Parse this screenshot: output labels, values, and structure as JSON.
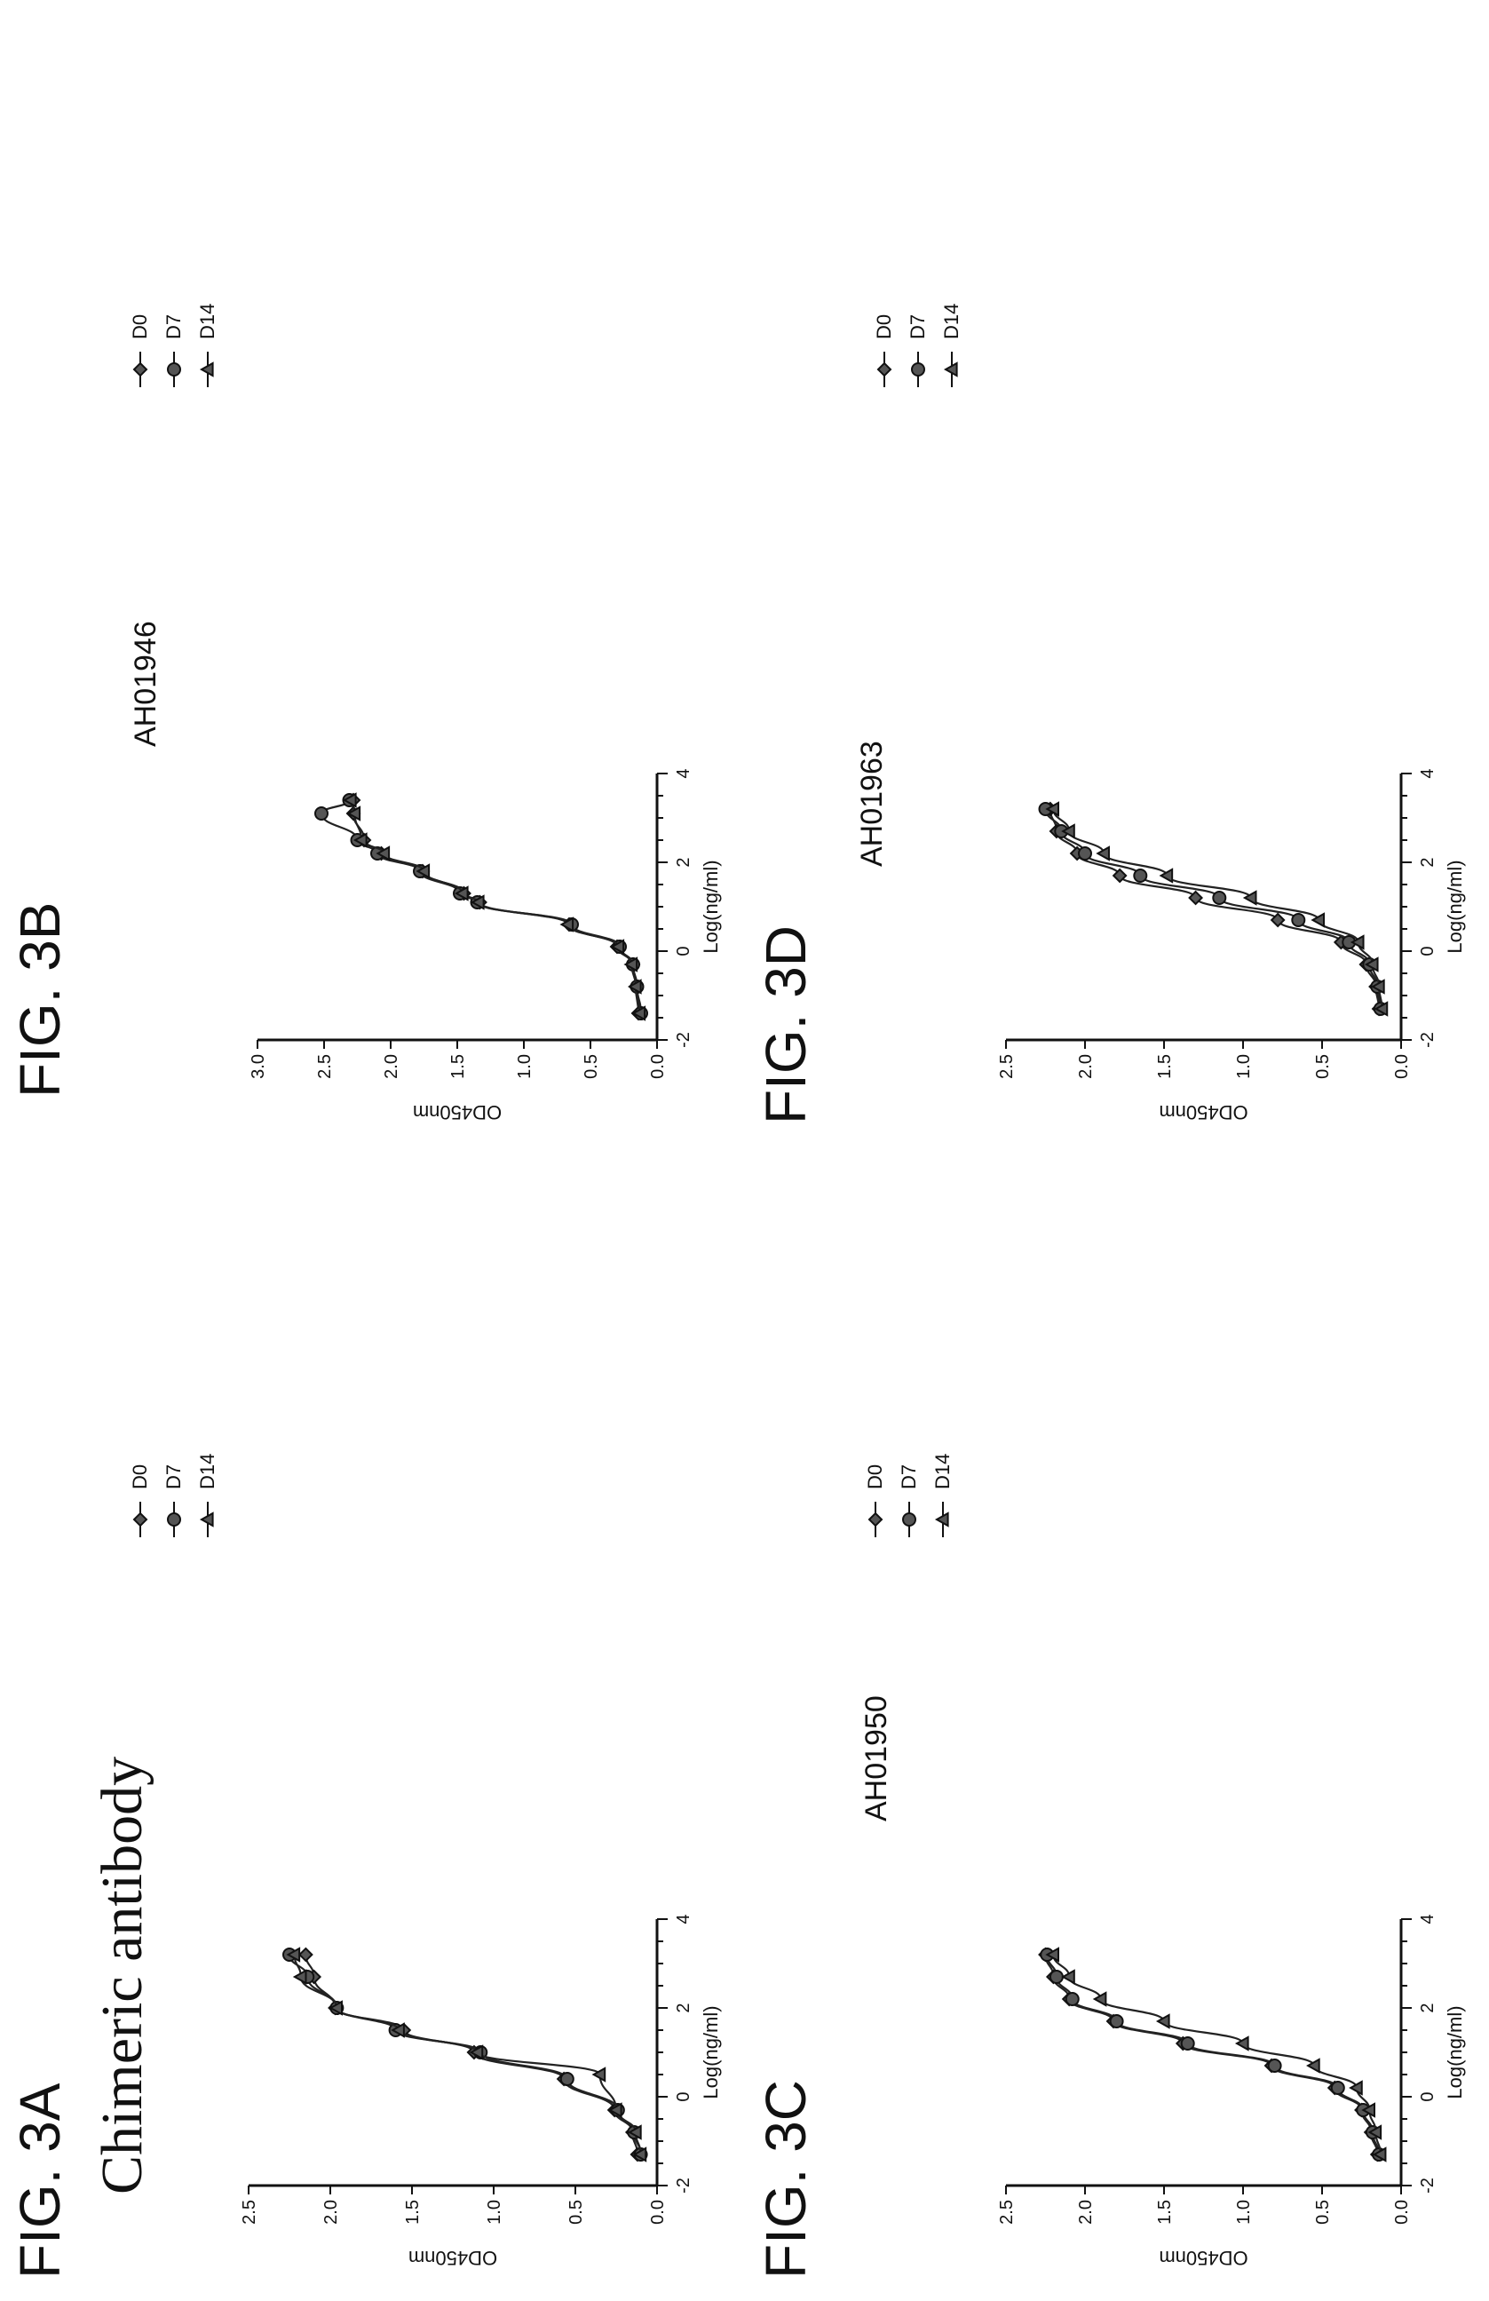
{
  "figures": [
    {
      "label": "FIG. 3A",
      "title": "Chimeric antibody"
    },
    {
      "label": "FIG. 3B",
      "title": "AH01946"
    },
    {
      "label": "FIG. 3C",
      "title": "AH01950"
    },
    {
      "label": "FIG. 3D",
      "title": "AH01963"
    }
  ],
  "chart_data": [
    {
      "type": "scatter",
      "title": "Chimeric antibody",
      "xlabel": "Log(ng/ml)",
      "ylabel": "OD450nm",
      "xlim": [
        -2,
        4
      ],
      "ylim": [
        0.0,
        2.5
      ],
      "xticks": [
        "-2",
        "0",
        "2",
        "4"
      ],
      "yticks": [
        "0.0",
        "0.5",
        "1.0",
        "1.5",
        "2.0",
        "2.5"
      ],
      "legend": "right",
      "fit_curves": true,
      "series": [
        {
          "name": "D0",
          "marker": "diamond",
          "x": [
            -1.3,
            -0.8,
            -0.3,
            0.4,
            1.0,
            1.5,
            2.0,
            2.7,
            3.2
          ],
          "y": [
            0.12,
            0.15,
            0.26,
            0.57,
            1.12,
            1.55,
            1.97,
            2.1,
            2.15
          ]
        },
        {
          "name": "D7",
          "marker": "circle",
          "x": [
            -1.3,
            -0.8,
            -0.3,
            0.4,
            1.0,
            1.5,
            2.0,
            2.7,
            3.2
          ],
          "y": [
            0.1,
            0.14,
            0.24,
            0.55,
            1.08,
            1.6,
            1.96,
            2.14,
            2.25
          ]
        },
        {
          "name": "D14",
          "marker": "triangle",
          "x": [
            -1.3,
            -0.8,
            -0.3,
            0.5,
            1.0,
            1.5,
            2.0,
            2.7,
            3.2
          ],
          "y": [
            0.1,
            0.13,
            0.25,
            0.35,
            1.1,
            1.58,
            1.96,
            2.18,
            2.22
          ]
        }
      ]
    },
    {
      "type": "scatter",
      "title": "AH01946",
      "xlabel": "Log(ng/ml)",
      "ylabel": "OD450nm",
      "xlim": [
        -2,
        4
      ],
      "ylim": [
        0.0,
        3.0
      ],
      "xticks": [
        "-2",
        "0",
        "2",
        "4"
      ],
      "yticks": [
        "0.0",
        "0.5",
        "1.0",
        "1.5",
        "2.0",
        "2.5",
        "3.0"
      ],
      "legend": "right",
      "fit_curves": true,
      "series": [
        {
          "name": "D0",
          "marker": "diamond",
          "x": [
            -1.4,
            -0.8,
            -0.3,
            0.1,
            0.6,
            1.1,
            1.3,
            1.8,
            2.2,
            2.5,
            3.1,
            3.4
          ],
          "y": [
            0.14,
            0.16,
            0.18,
            0.3,
            0.66,
            1.33,
            1.45,
            1.76,
            2.07,
            2.2,
            2.28,
            2.28
          ]
        },
        {
          "name": "D7",
          "marker": "circle",
          "x": [
            -1.4,
            -0.8,
            -0.3,
            0.1,
            0.6,
            1.1,
            1.3,
            1.8,
            2.2,
            2.5,
            3.1,
            3.4
          ],
          "y": [
            0.12,
            0.15,
            0.18,
            0.28,
            0.64,
            1.35,
            1.48,
            1.78,
            2.1,
            2.25,
            2.52,
            2.31
          ]
        },
        {
          "name": "D14",
          "marker": "triangle",
          "x": [
            -1.4,
            -0.8,
            -0.3,
            0.1,
            0.6,
            1.1,
            1.3,
            1.8,
            2.2,
            2.5,
            3.1,
            3.4
          ],
          "y": [
            0.13,
            0.16,
            0.19,
            0.29,
            0.67,
            1.34,
            1.46,
            1.75,
            2.05,
            2.22,
            2.27,
            2.3
          ]
        }
      ]
    },
    {
      "type": "scatter",
      "title": "AH01950",
      "xlabel": "Log(ng/ml)",
      "ylabel": "OD450nm",
      "xlim": [
        -2,
        4
      ],
      "ylim": [
        0.0,
        2.5
      ],
      "xticks": [
        "-2",
        "0",
        "2",
        "4"
      ],
      "yticks": [
        "0.0",
        "0.5",
        "1.0",
        "1.5",
        "2.0",
        "2.5"
      ],
      "legend": "right",
      "fit_curves": true,
      "series": [
        {
          "name": "D0",
          "marker": "diamond",
          "x": [
            -1.3,
            -0.8,
            -0.3,
            0.2,
            0.7,
            1.2,
            1.7,
            2.2,
            2.7,
            3.2
          ],
          "y": [
            0.15,
            0.19,
            0.25,
            0.42,
            0.82,
            1.38,
            1.82,
            2.1,
            2.2,
            2.25
          ]
        },
        {
          "name": "D7",
          "marker": "circle",
          "x": [
            -1.3,
            -0.8,
            -0.3,
            0.2,
            0.7,
            1.2,
            1.7,
            2.2,
            2.7,
            3.2
          ],
          "y": [
            0.14,
            0.18,
            0.24,
            0.4,
            0.8,
            1.35,
            1.8,
            2.08,
            2.18,
            2.24
          ]
        },
        {
          "name": "D14",
          "marker": "triangle",
          "x": [
            -1.3,
            -0.8,
            -0.3,
            0.2,
            0.7,
            1.2,
            1.7,
            2.2,
            2.7,
            3.2
          ],
          "y": [
            0.13,
            0.16,
            0.2,
            0.28,
            0.55,
            1.0,
            1.5,
            1.9,
            2.1,
            2.2
          ]
        }
      ]
    },
    {
      "type": "scatter",
      "title": "AH01963",
      "xlabel": "Log(ng/ml)",
      "ylabel": "OD450nm",
      "xlim": [
        -2,
        4
      ],
      "ylim": [
        0.0,
        2.5
      ],
      "xticks": [
        "-2",
        "0",
        "2",
        "4"
      ],
      "yticks": [
        "0.0",
        "0.5",
        "1.0",
        "1.5",
        "2.0",
        "2.5"
      ],
      "legend": "right",
      "fit_curves": true,
      "series": [
        {
          "name": "D0",
          "marker": "diamond",
          "x": [
            -1.3,
            -0.8,
            -0.3,
            0.2,
            0.7,
            1.2,
            1.7,
            2.2,
            2.7,
            3.2
          ],
          "y": [
            0.14,
            0.16,
            0.22,
            0.38,
            0.78,
            1.3,
            1.78,
            2.05,
            2.18,
            2.22
          ]
        },
        {
          "name": "D7",
          "marker": "circle",
          "x": [
            -1.3,
            -0.8,
            -0.3,
            0.2,
            0.7,
            1.2,
            1.7,
            2.2,
            2.7,
            3.2
          ],
          "y": [
            0.13,
            0.15,
            0.2,
            0.33,
            0.65,
            1.15,
            1.65,
            2.0,
            2.15,
            2.25
          ]
        },
        {
          "name": "D14",
          "marker": "triangle",
          "x": [
            -1.3,
            -0.8,
            -0.3,
            0.2,
            0.7,
            1.2,
            1.7,
            2.2,
            2.7,
            3.2
          ],
          "y": [
            0.12,
            0.14,
            0.18,
            0.27,
            0.52,
            0.95,
            1.48,
            1.88,
            2.1,
            2.2
          ]
        }
      ]
    }
  ],
  "style": {
    "ink": "#111111",
    "curve": "#222222",
    "marker_fill": "#555555"
  }
}
